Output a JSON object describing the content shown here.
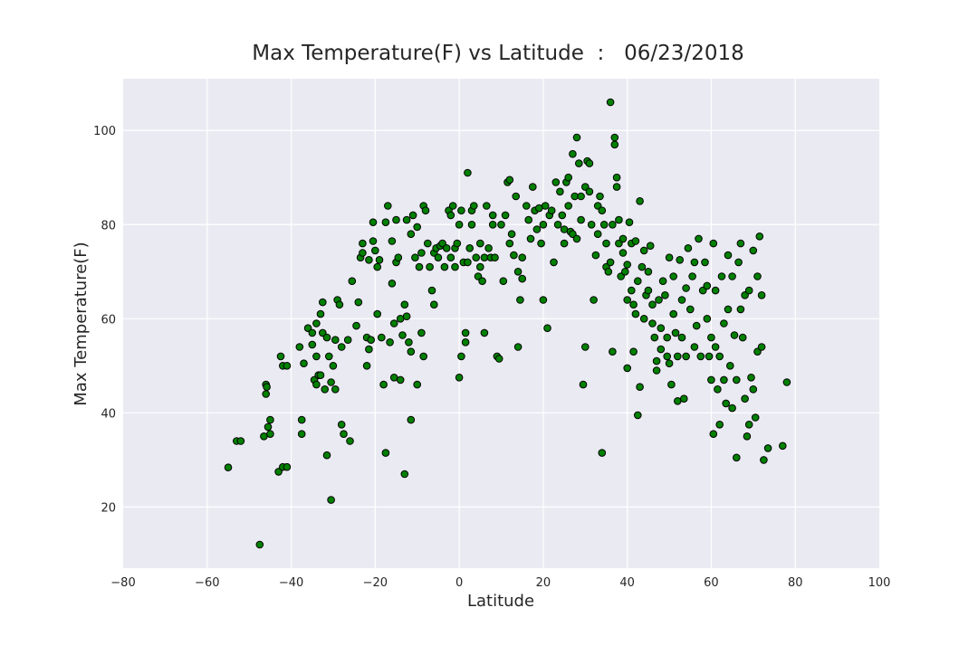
{
  "chart_data": {
    "type": "scatter",
    "title": "Max Temperature(F) vs Latitude  :   06/23/2018",
    "xlabel": "Latitude",
    "ylabel": "Max Temperature(F)",
    "xlim": [
      -80,
      100
    ],
    "ylim": [
      7,
      111
    ],
    "xticks": [
      "−80",
      "−60",
      "−40",
      "−20",
      "0",
      "20",
      "40",
      "60",
      "80",
      "100"
    ],
    "yticks": [
      "20",
      "40",
      "60",
      "80",
      "100"
    ],
    "grid": true,
    "background_color": "#EAEAF2",
    "grid_color": "#FFFFFF",
    "marker_color": "#008000",
    "marker_edge_color": "#000000",
    "points_note": "approximate, estimated from gridlines",
    "points": [
      [
        -55,
        28.4
      ],
      [
        -53,
        34
      ],
      [
        -52,
        34
      ],
      [
        -47.5,
        12
      ],
      [
        -46.5,
        35
      ],
      [
        -46,
        44
      ],
      [
        -46,
        46
      ],
      [
        -45.8,
        45.5
      ],
      [
        -45.5,
        37
      ],
      [
        -45,
        38.5
      ],
      [
        -45,
        35.5
      ],
      [
        -43,
        27.5
      ],
      [
        -42.5,
        52
      ],
      [
        -42,
        28.5
      ],
      [
        -42,
        50
      ],
      [
        -41,
        28.5
      ],
      [
        -41,
        50
      ],
      [
        -38,
        54
      ],
      [
        -37.5,
        38.5
      ],
      [
        -37.5,
        35.5
      ],
      [
        -37,
        50.5
      ],
      [
        -36,
        58
      ],
      [
        -35,
        54.5
      ],
      [
        -35,
        57
      ],
      [
        -34.5,
        47
      ],
      [
        -34,
        59
      ],
      [
        -34,
        46
      ],
      [
        -34,
        52
      ],
      [
        -33.5,
        48
      ],
      [
        -33,
        61
      ],
      [
        -33,
        48
      ],
      [
        -32.5,
        63.5
      ],
      [
        -32.5,
        57
      ],
      [
        -32,
        45
      ],
      [
        -31.5,
        31
      ],
      [
        -31.5,
        56
      ],
      [
        -31,
        52
      ],
      [
        -30.5,
        46.5
      ],
      [
        -30.5,
        21.5
      ],
      [
        -30,
        50
      ],
      [
        -29.5,
        45
      ],
      [
        -29.5,
        55.5
      ],
      [
        -29,
        64
      ],
      [
        -28.5,
        63
      ],
      [
        -28,
        37.5
      ],
      [
        -28,
        54
      ],
      [
        -27.5,
        35.5
      ],
      [
        -26.5,
        55.5
      ],
      [
        -26,
        34
      ],
      [
        -25.5,
        68
      ],
      [
        -24.5,
        58.5
      ],
      [
        -24,
        63.5
      ],
      [
        -23.5,
        73
      ],
      [
        -23,
        76
      ],
      [
        -23,
        74
      ],
      [
        -22,
        50
      ],
      [
        -22,
        56
      ],
      [
        -21.5,
        53.5
      ],
      [
        -21.5,
        72.5
      ],
      [
        -21,
        55.5
      ],
      [
        -20.5,
        80.5
      ],
      [
        -20.5,
        76.5
      ],
      [
        -20,
        74.5
      ],
      [
        -19.5,
        71
      ],
      [
        -19.5,
        61
      ],
      [
        -19,
        72.5
      ],
      [
        -18.5,
        56
      ],
      [
        -18,
        46
      ],
      [
        -17.5,
        31.5
      ],
      [
        -17.5,
        80.5
      ],
      [
        -17,
        84
      ],
      [
        -16.5,
        55
      ],
      [
        -16,
        76.5
      ],
      [
        -16,
        67.5
      ],
      [
        -15.5,
        47.5
      ],
      [
        -15.5,
        59
      ],
      [
        -15,
        81
      ],
      [
        -15,
        72
      ],
      [
        -14.5,
        73
      ],
      [
        -14,
        60
      ],
      [
        -14,
        47
      ],
      [
        -13.5,
        56.5
      ],
      [
        -13,
        63
      ],
      [
        -13,
        27
      ],
      [
        -12.5,
        60.5
      ],
      [
        -12.5,
        81
      ],
      [
        -12,
        55
      ],
      [
        -11.5,
        78
      ],
      [
        -11.5,
        38.5
      ],
      [
        -11.5,
        53
      ],
      [
        -11,
        82
      ],
      [
        -10.5,
        73
      ],
      [
        -10,
        46
      ],
      [
        -10,
        79.5
      ],
      [
        -9.5,
        71
      ],
      [
        -9,
        74
      ],
      [
        -9,
        57
      ],
      [
        -8.5,
        84
      ],
      [
        -8.5,
        52
      ],
      [
        -8,
        83
      ],
      [
        -7.5,
        76
      ],
      [
        -7,
        71
      ],
      [
        -6.5,
        66
      ],
      [
        -6,
        74
      ],
      [
        -6,
        63
      ],
      [
        -5.5,
        75
      ],
      [
        -5,
        73
      ],
      [
        -4.5,
        75.5
      ],
      [
        -4,
        76
      ],
      [
        -3.5,
        71
      ],
      [
        -3,
        75
      ],
      [
        -2.5,
        83
      ],
      [
        -2,
        82
      ],
      [
        -2,
        73
      ],
      [
        -1.5,
        84
      ],
      [
        -1,
        75
      ],
      [
        -1,
        71
      ],
      [
        -0.5,
        76
      ],
      [
        0,
        47.5
      ],
      [
        0,
        80
      ],
      [
        0.5,
        52
      ],
      [
        0.5,
        83
      ],
      [
        1,
        72
      ],
      [
        1.5,
        57
      ],
      [
        1.5,
        55
      ],
      [
        2,
        91
      ],
      [
        2,
        72
      ],
      [
        2.5,
        75
      ],
      [
        3,
        83
      ],
      [
        3,
        80
      ],
      [
        3.5,
        84
      ],
      [
        4,
        73
      ],
      [
        4.5,
        69
      ],
      [
        5,
        71
      ],
      [
        5,
        76
      ],
      [
        5.5,
        68
      ],
      [
        6,
        73
      ],
      [
        6,
        57
      ],
      [
        6.5,
        84
      ],
      [
        7,
        75
      ],
      [
        7.5,
        73
      ],
      [
        8,
        80
      ],
      [
        8,
        82
      ],
      [
        8.5,
        73
      ],
      [
        9,
        52
      ],
      [
        9.5,
        51.5
      ],
      [
        10,
        80
      ],
      [
        10.5,
        68
      ],
      [
        11,
        82
      ],
      [
        11.5,
        89
      ],
      [
        12,
        89.5
      ],
      [
        12,
        76
      ],
      [
        12.5,
        78
      ],
      [
        13,
        73.5
      ],
      [
        13.5,
        86
      ],
      [
        14,
        70
      ],
      [
        14,
        54
      ],
      [
        14.5,
        64
      ],
      [
        15,
        68.5
      ],
      [
        15,
        73
      ],
      [
        16,
        84
      ],
      [
        16.5,
        81
      ],
      [
        17,
        77
      ],
      [
        17.5,
        88
      ],
      [
        18,
        83
      ],
      [
        18.5,
        79
      ],
      [
        19,
        83.5
      ],
      [
        19.5,
        76
      ],
      [
        20,
        80
      ],
      [
        20,
        64
      ],
      [
        20.5,
        84
      ],
      [
        21,
        58
      ],
      [
        21.5,
        82
      ],
      [
        22,
        83
      ],
      [
        22.5,
        72
      ],
      [
        23,
        89
      ],
      [
        23.5,
        80
      ],
      [
        24,
        87
      ],
      [
        24.5,
        82
      ],
      [
        25,
        76
      ],
      [
        25,
        79
      ],
      [
        25.5,
        89
      ],
      [
        26,
        90
      ],
      [
        26,
        84
      ],
      [
        26.5,
        78.5
      ],
      [
        27,
        78
      ],
      [
        27,
        95
      ],
      [
        27.5,
        86
      ],
      [
        28,
        77
      ],
      [
        28,
        98.5
      ],
      [
        28.5,
        93
      ],
      [
        29,
        86
      ],
      [
        29,
        81
      ],
      [
        29.5,
        46
      ],
      [
        30,
        88
      ],
      [
        30,
        54
      ],
      [
        30.5,
        93.5
      ],
      [
        31,
        93
      ],
      [
        31,
        87
      ],
      [
        31.5,
        80
      ],
      [
        32,
        64
      ],
      [
        32.5,
        73.5
      ],
      [
        33,
        84
      ],
      [
        33,
        78
      ],
      [
        33.5,
        86
      ],
      [
        34,
        31.5
      ],
      [
        34,
        83
      ],
      [
        34.5,
        80
      ],
      [
        35,
        71
      ],
      [
        35,
        76
      ],
      [
        35.5,
        70
      ],
      [
        36,
        106
      ],
      [
        36,
        72
      ],
      [
        36.5,
        80
      ],
      [
        36.5,
        53
      ],
      [
        37,
        97
      ],
      [
        37,
        98.5
      ],
      [
        37.5,
        88
      ],
      [
        37.5,
        90
      ],
      [
        38,
        76
      ],
      [
        38,
        81
      ],
      [
        38.5,
        69
      ],
      [
        39,
        74
      ],
      [
        39,
        77
      ],
      [
        39.5,
        70
      ],
      [
        40,
        64
      ],
      [
        40,
        71.5
      ],
      [
        40,
        49.5
      ],
      [
        40.5,
        80.5
      ],
      [
        41,
        76
      ],
      [
        41,
        66
      ],
      [
        41.5,
        63
      ],
      [
        41.5,
        53
      ],
      [
        42,
        61
      ],
      [
        42,
        76.5
      ],
      [
        42.5,
        68
      ],
      [
        42.5,
        39.5
      ],
      [
        43,
        85
      ],
      [
        43,
        45.5
      ],
      [
        43.5,
        71
      ],
      [
        44,
        60
      ],
      [
        44,
        74.5
      ],
      [
        44.5,
        65
      ],
      [
        45,
        70
      ],
      [
        45,
        66
      ],
      [
        45.5,
        75.5
      ],
      [
        46,
        63
      ],
      [
        46,
        59
      ],
      [
        46.5,
        56
      ],
      [
        47,
        51
      ],
      [
        47,
        49
      ],
      [
        47.5,
        64
      ],
      [
        48,
        58
      ],
      [
        48,
        53.5
      ],
      [
        48.5,
        68
      ],
      [
        49,
        65
      ],
      [
        49.5,
        52
      ],
      [
        49.5,
        56
      ],
      [
        50,
        73
      ],
      [
        50,
        50.5
      ],
      [
        50.5,
        46
      ],
      [
        51,
        61
      ],
      [
        51,
        69
      ],
      [
        51.5,
        57
      ],
      [
        52,
        42.5
      ],
      [
        52,
        52
      ],
      [
        52.5,
        72.5
      ],
      [
        53,
        64
      ],
      [
        53,
        56
      ],
      [
        53.5,
        43
      ],
      [
        54,
        52
      ],
      [
        54,
        66.5
      ],
      [
        54.5,
        75
      ],
      [
        55,
        62
      ],
      [
        55.5,
        69
      ],
      [
        56,
        54
      ],
      [
        56,
        72
      ],
      [
        56.5,
        58.5
      ],
      [
        57,
        77
      ],
      [
        57.5,
        52
      ],
      [
        58,
        66
      ],
      [
        58.5,
        72
      ],
      [
        59,
        60
      ],
      [
        59,
        67
      ],
      [
        59.5,
        52
      ],
      [
        60,
        56
      ],
      [
        60,
        47
      ],
      [
        60.5,
        76
      ],
      [
        60.5,
        35.5
      ],
      [
        61,
        66
      ],
      [
        61,
        54
      ],
      [
        61.5,
        45
      ],
      [
        62,
        52
      ],
      [
        62,
        37.5
      ],
      [
        62.5,
        69
      ],
      [
        63,
        59
      ],
      [
        63,
        47
      ],
      [
        63.5,
        42
      ],
      [
        64,
        73.5
      ],
      [
        64,
        62
      ],
      [
        64.5,
        50
      ],
      [
        65,
        69
      ],
      [
        65,
        41
      ],
      [
        65.5,
        56.5
      ],
      [
        66,
        47
      ],
      [
        66,
        30.5
      ],
      [
        66.5,
        72
      ],
      [
        67,
        76
      ],
      [
        67,
        62
      ],
      [
        67.5,
        56
      ],
      [
        68,
        65
      ],
      [
        68,
        43
      ],
      [
        68.5,
        35
      ],
      [
        69,
        66
      ],
      [
        69,
        37.5
      ],
      [
        69.5,
        47.5
      ],
      [
        70,
        74.5
      ],
      [
        70,
        45
      ],
      [
        70.5,
        39
      ],
      [
        71,
        69
      ],
      [
        71,
        53
      ],
      [
        71.5,
        77.5
      ],
      [
        72,
        65
      ],
      [
        72,
        54
      ],
      [
        72.5,
        30
      ],
      [
        73.5,
        32.5
      ],
      [
        77,
        33
      ],
      [
        78,
        46.5
      ]
    ]
  }
}
